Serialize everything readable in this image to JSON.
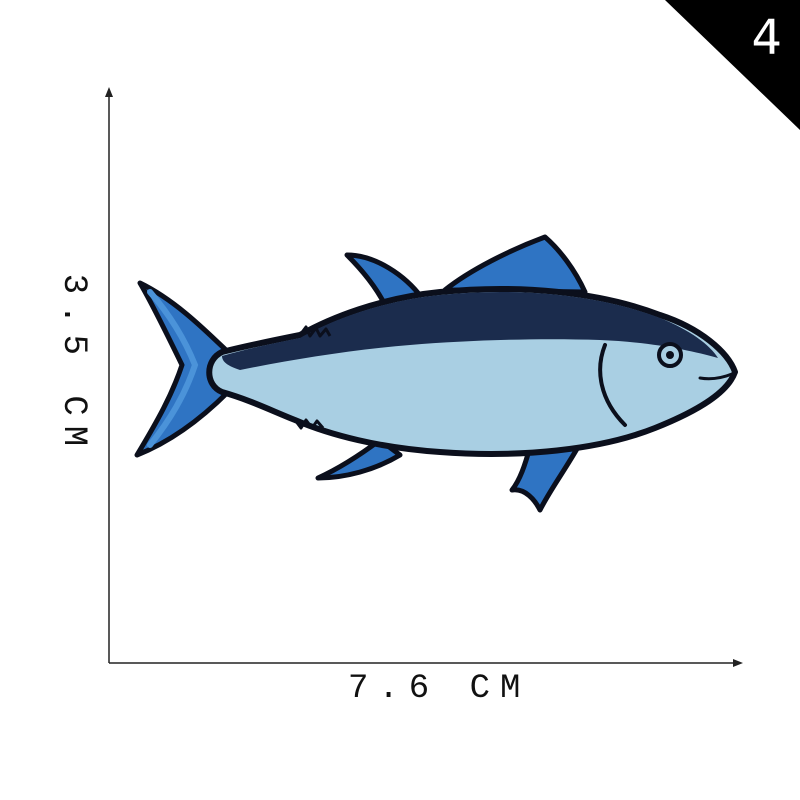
{
  "badge": {
    "number": "4",
    "color": "#000000"
  },
  "dimensions": {
    "width_label": "7.6 CM",
    "height_label": "3.5 CM"
  },
  "patch": {
    "subject": "tuna-fish-embroidered-patch",
    "colors": {
      "outline": "#0b0f1c",
      "back": "#1b2c4d",
      "belly": "#a9cfe3",
      "fins": "#2f74c3",
      "fin_highlight": "#4b93d9"
    }
  }
}
